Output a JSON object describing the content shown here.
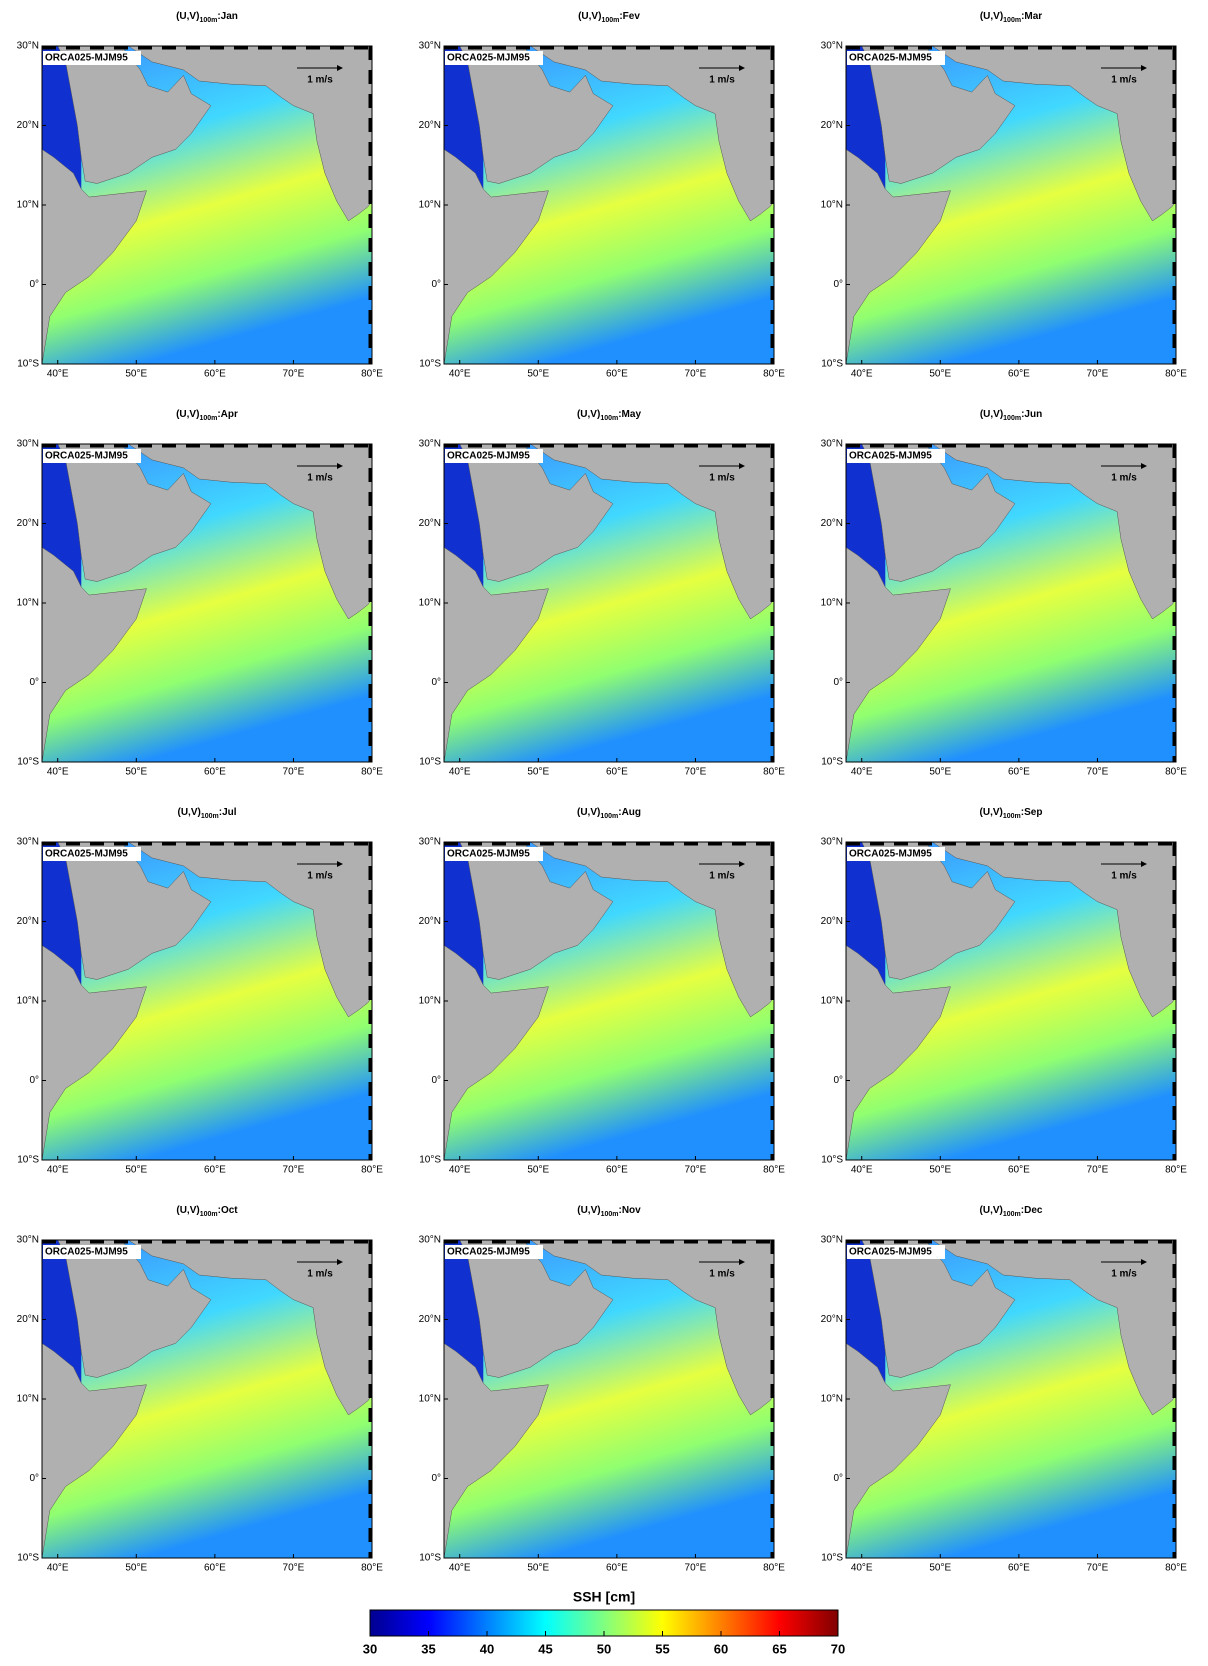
{
  "panels": [
    {
      "title": "(U,V)",
      "subscript": "100m",
      "month": ":Jan"
    },
    {
      "title": "(U,V)",
      "subscript": "100m",
      "month": ":Fev"
    },
    {
      "title": "(U,V)",
      "subscript": "100m",
      "month": ":Mar"
    },
    {
      "title": "(U,V)",
      "subscript": "100m",
      "month": ":Apr"
    },
    {
      "title": "(U,V)",
      "subscript": "100m",
      "month": ":May"
    },
    {
      "title": "(U,V)",
      "subscript": "100m",
      "month": ":Jun"
    },
    {
      "title": "(U,V)",
      "subscript": "100m",
      "month": ":Jul"
    },
    {
      "title": "(U,V)",
      "subscript": "100m",
      "month": ":Aug"
    },
    {
      "title": "(U,V)",
      "subscript": "100m",
      "month": ":Sep"
    },
    {
      "title": "(U,V)",
      "subscript": "100m",
      "month": ":Oct"
    },
    {
      "title": "(U,V)",
      "subscript": "100m",
      "month": ":Nov"
    },
    {
      "title": "(U,V)",
      "subscript": "100m",
      "month": ":Dec"
    }
  ],
  "model_label": "ORCA025-MJM95",
  "scale_label": "1 m/s",
  "lon_range": [
    38,
    80
  ],
  "lat_range": [
    -10,
    30
  ],
  "lat_ticks": [
    {
      "value": 30,
      "label": "30°N"
    },
    {
      "value": 20,
      "label": "20°N"
    },
    {
      "value": 10,
      "label": "10°N"
    },
    {
      "value": 0,
      "label": "0°"
    },
    {
      "value": -10,
      "label": "10°S"
    }
  ],
  "lon_ticks": [
    {
      "value": 40,
      "label": "40°E"
    },
    {
      "value": 50,
      "label": "50°E"
    },
    {
      "value": 60,
      "label": "60°E"
    },
    {
      "value": 70,
      "label": "70°E"
    },
    {
      "value": 80,
      "label": "80°E"
    }
  ],
  "colorbar": {
    "title": "SSH [cm]",
    "range": [
      30,
      70
    ],
    "ticks": [
      30,
      35,
      40,
      45,
      50,
      55,
      60,
      65,
      70
    ],
    "colors": [
      "#00008f",
      "#0000ff",
      "#0080ff",
      "#00ffff",
      "#80ff80",
      "#ffff00",
      "#ff8000",
      "#ff0000",
      "#800000"
    ]
  }
}
